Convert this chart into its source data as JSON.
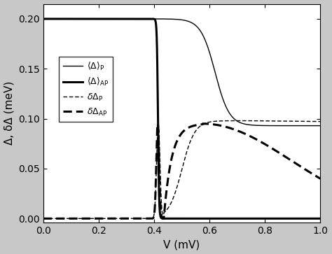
{
  "xlabel": "V (mV)",
  "ylabel": "Δ, δΔ (meV)",
  "xlim": [
    0,
    1.0
  ],
  "ylim": [
    -0.004,
    0.215
  ],
  "yticks": [
    0,
    0.05,
    0.1,
    0.15,
    0.2
  ],
  "xticks": [
    0,
    0.2,
    0.4,
    0.6,
    0.8,
    1.0
  ],
  "figure_bg": "#c8c8c8",
  "plot_bg": "#ffffff",
  "lw_thin": 1.0,
  "lw_thick": 2.2
}
